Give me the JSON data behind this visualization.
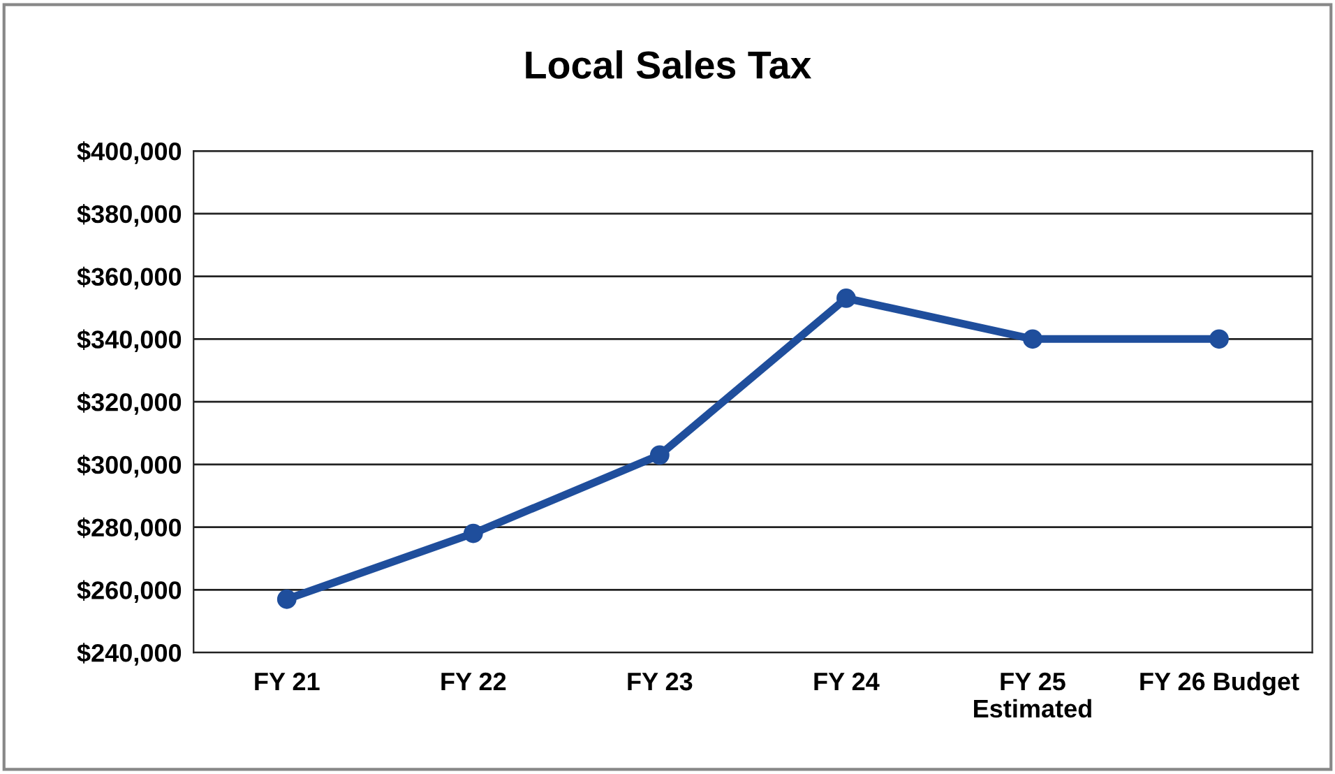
{
  "chart_data": {
    "type": "line",
    "title": "Local Sales Tax",
    "categories": [
      "FY 21",
      "FY 22",
      "FY 23",
      "FY 24",
      "FY 25\nEstimated",
      "FY 26 Budget"
    ],
    "series": [
      {
        "color": "#1f4e9c",
        "values": [
          257000,
          278000,
          303000,
          353000,
          340000,
          340000
        ]
      }
    ],
    "ylim": [
      240000,
      400000
    ],
    "yticks": [
      {
        "value": 240000,
        "label": "$240,000"
      },
      {
        "value": 260000,
        "label": "$260,000"
      },
      {
        "value": 280000,
        "label": "$280,000"
      },
      {
        "value": 300000,
        "label": "$300,000"
      },
      {
        "value": 320000,
        "label": "$320,000"
      },
      {
        "value": 340000,
        "label": "$340,000"
      },
      {
        "value": 360000,
        "label": "$360,000"
      },
      {
        "value": 380000,
        "label": "$380,000"
      },
      {
        "value": 400000,
        "label": "$400,000"
      }
    ],
    "grid": "y",
    "marker": "circle",
    "line_style": "solid",
    "legend": false
  }
}
